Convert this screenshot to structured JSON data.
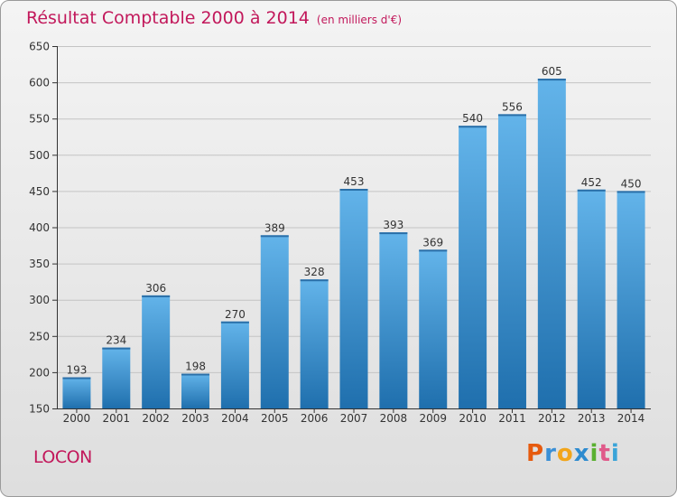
{
  "title": "Résultat Comptable 2000 à 2014",
  "subtitle": "(en milliers d'€)",
  "place": "LOCON",
  "logo": {
    "letters": [
      "P",
      "r",
      "o",
      "x",
      "i",
      "t",
      "i"
    ],
    "colors": [
      "#e65a0e",
      "#3a8fd6",
      "#f2a51a",
      "#2e8bcf",
      "#5ab031",
      "#e05a8a",
      "#3aa4d8"
    ]
  },
  "colors": {
    "bar_top": "#63b4ea",
    "bar_bottom": "#1f6fad",
    "grid": "#c4c4c4",
    "axis": "#333333",
    "title": "#c2185b"
  },
  "chart_data": {
    "type": "bar",
    "title": "Résultat Comptable 2000 à 2014",
    "subtitle": "(en milliers d'€)",
    "categories": [
      "2000",
      "2001",
      "2002",
      "2003",
      "2004",
      "2005",
      "2006",
      "2007",
      "2008",
      "2009",
      "2010",
      "2011",
      "2012",
      "2013",
      "2014"
    ],
    "values": [
      193,
      234,
      306,
      198,
      270,
      389,
      328,
      453,
      393,
      369,
      540,
      556,
      605,
      452,
      450
    ],
    "ylim": [
      150,
      650
    ],
    "yticks": [
      150,
      200,
      250,
      300,
      350,
      400,
      450,
      500,
      550,
      600,
      650
    ],
    "grid": true,
    "data_labels": true
  }
}
